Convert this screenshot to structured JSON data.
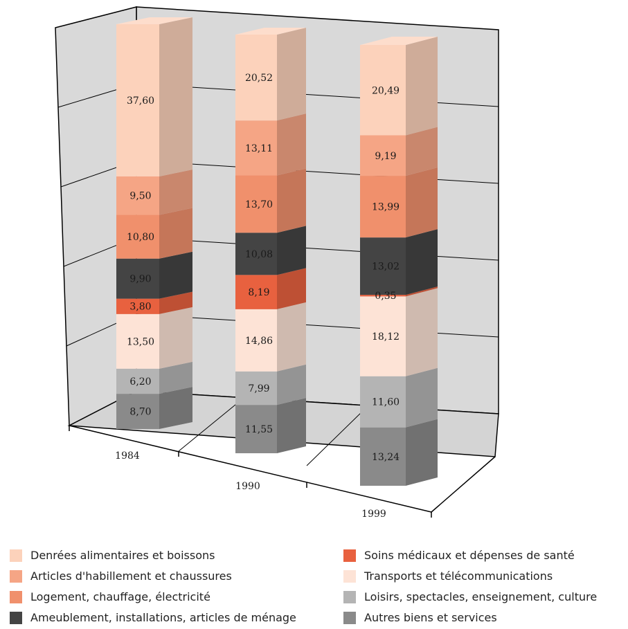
{
  "chart_data": {
    "type": "bar",
    "stacked": true,
    "three_d": true,
    "categories": [
      "1984",
      "1990",
      "1999"
    ],
    "series": [
      {
        "name": "Autres biens et services",
        "values": [
          8.7,
          11.55,
          13.24
        ],
        "label_text": [
          "8,70",
          "11,55",
          "13,24"
        ],
        "color": "#8a8a8a"
      },
      {
        "name": "Loisirs, spectacles, enseignement, culture",
        "values": [
          6.2,
          7.99,
          11.6
        ],
        "label_text": [
          "6,20",
          "7,99",
          "11,60"
        ],
        "color": "#b4b4b4"
      },
      {
        "name": "Transports et télécommunications",
        "values": [
          13.5,
          14.86,
          18.12
        ],
        "label_text": [
          "13,50",
          "14,86",
          "18,12"
        ],
        "color": "#fde3d6"
      },
      {
        "name": "Soins médicaux et dépenses de santé",
        "values": [
          3.8,
          8.19,
          0.35
        ],
        "label_text": [
          "3,80",
          "8,19",
          "0,35"
        ],
        "color": "#e8613f"
      },
      {
        "name": "Ameublement, installations, articles de ménage",
        "values": [
          9.9,
          10.08,
          13.02
        ],
        "label_text": [
          "9,90",
          "10,08",
          "13,02"
        ],
        "color": "#444444"
      },
      {
        "name": "Logement, chauffage, électricité",
        "values": [
          10.8,
          13.7,
          13.99
        ],
        "label_text": [
          "10,80",
          "13,70",
          "13,99"
        ],
        "color": "#f0906c"
      },
      {
        "name": "Articles d'habillement et chaussures",
        "values": [
          9.5,
          13.11,
          9.19
        ],
        "label_text": [
          "9,50",
          "13,11",
          "9,19"
        ],
        "color": "#f5a585"
      },
      {
        "name": "Denrées alimentaires et boissons",
        "values": [
          37.6,
          20.52,
          20.49
        ],
        "label_text": [
          "37,60",
          "20,52",
          "20,49"
        ],
        "color": "#fcd2bb"
      }
    ],
    "ylim": [
      0,
      100
    ],
    "grid": true,
    "legend_position": "bottom"
  },
  "legend": {
    "left": [
      {
        "label": "Denrées alimentaires et boissons",
        "color": "#fcd2bb"
      },
      {
        "label": "Articles d'habillement et chaussures",
        "color": "#f5a585"
      },
      {
        "label": "Logement, chauffage, électricité",
        "color": "#f0906c"
      },
      {
        "label": "Ameublement, installations, articles de ménage",
        "color": "#444444"
      }
    ],
    "right": [
      {
        "label": "Soins médicaux et dépenses de santé",
        "color": "#e8613f"
      },
      {
        "label": "Transports et télécommunications",
        "color": "#fde3d6"
      },
      {
        "label": "Loisirs, spectacles, enseignement, culture",
        "color": "#b4b4b4"
      },
      {
        "label": "Autres biens et services",
        "color": "#8a8a8a"
      }
    ]
  }
}
